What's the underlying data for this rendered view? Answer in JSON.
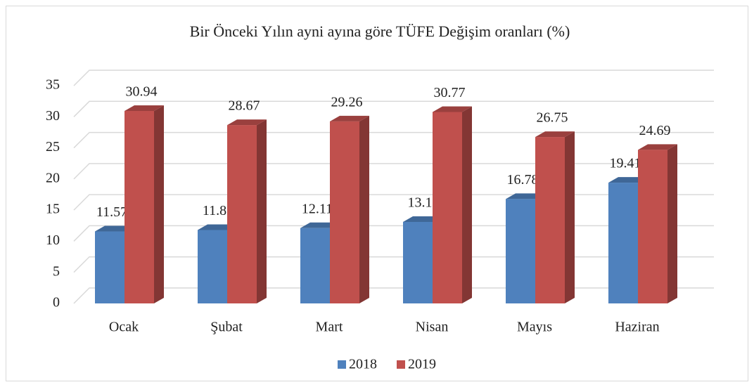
{
  "chart_data": {
    "type": "bar3d",
    "title": "Bir Önceki Yılın ayni ayına göre TÜFE Değişim oranları (%)",
    "categories": [
      "Ocak",
      "Şubat",
      "Mart",
      "Nisan",
      "Mayıs",
      "Haziran"
    ],
    "series": [
      {
        "name": "2018",
        "color": "#4f81bd",
        "values": [
          11.57,
          11.8,
          12.11,
          13.1,
          16.78,
          19.41
        ]
      },
      {
        "name": "2019",
        "color": "#c0504d",
        "values": [
          30.94,
          28.67,
          29.26,
          30.77,
          26.75,
          24.69
        ]
      }
    ],
    "ylim": [
      0,
      35
    ],
    "yticks": [
      0,
      5,
      10,
      15,
      20,
      25,
      30,
      35
    ],
    "grid": true,
    "legend": "bottom"
  }
}
